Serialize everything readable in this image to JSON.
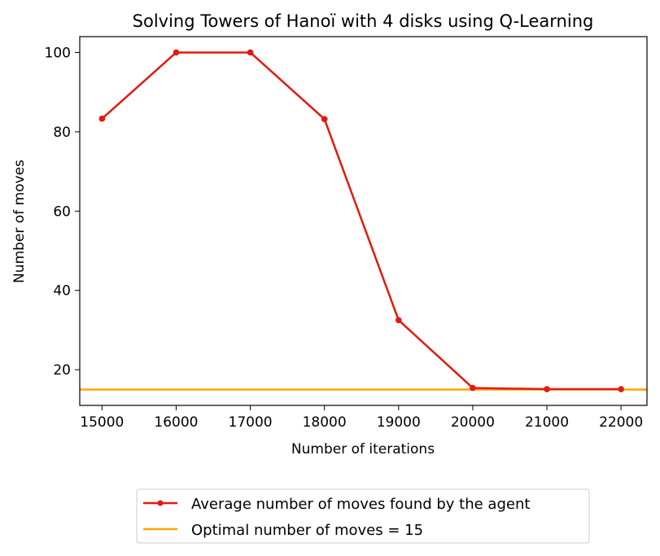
{
  "chart_data": {
    "type": "line",
    "title": "Solving Towers of Hanoï with 4 disks using Q-Learning",
    "xlabel": "Number of iterations",
    "ylabel": "Number of moves",
    "x": [
      15000,
      16000,
      17000,
      18000,
      19000,
      20000,
      21000,
      22000
    ],
    "xlim": [
      14700,
      22350
    ],
    "ylim": [
      11,
      104
    ],
    "xticks": [
      15000,
      16000,
      17000,
      18000,
      19000,
      20000,
      21000,
      22000
    ],
    "yticks": [
      20,
      40,
      60,
      80,
      100
    ],
    "grid": false,
    "legend_placement": "bottom-center, below axes",
    "series": [
      {
        "name": "Average number of moves found by the agent",
        "values": [
          83.3,
          100,
          100,
          83.2,
          32.5,
          15.4,
          15.1,
          15.1
        ],
        "color": "#e31a0f",
        "marker": "circle"
      },
      {
        "name": "Optimal number of moves = 15",
        "values": [
          15,
          15,
          15,
          15,
          15,
          15,
          15,
          15
        ],
        "color": "#ffa500",
        "marker": "none",
        "style": "horizontal-line"
      }
    ]
  }
}
